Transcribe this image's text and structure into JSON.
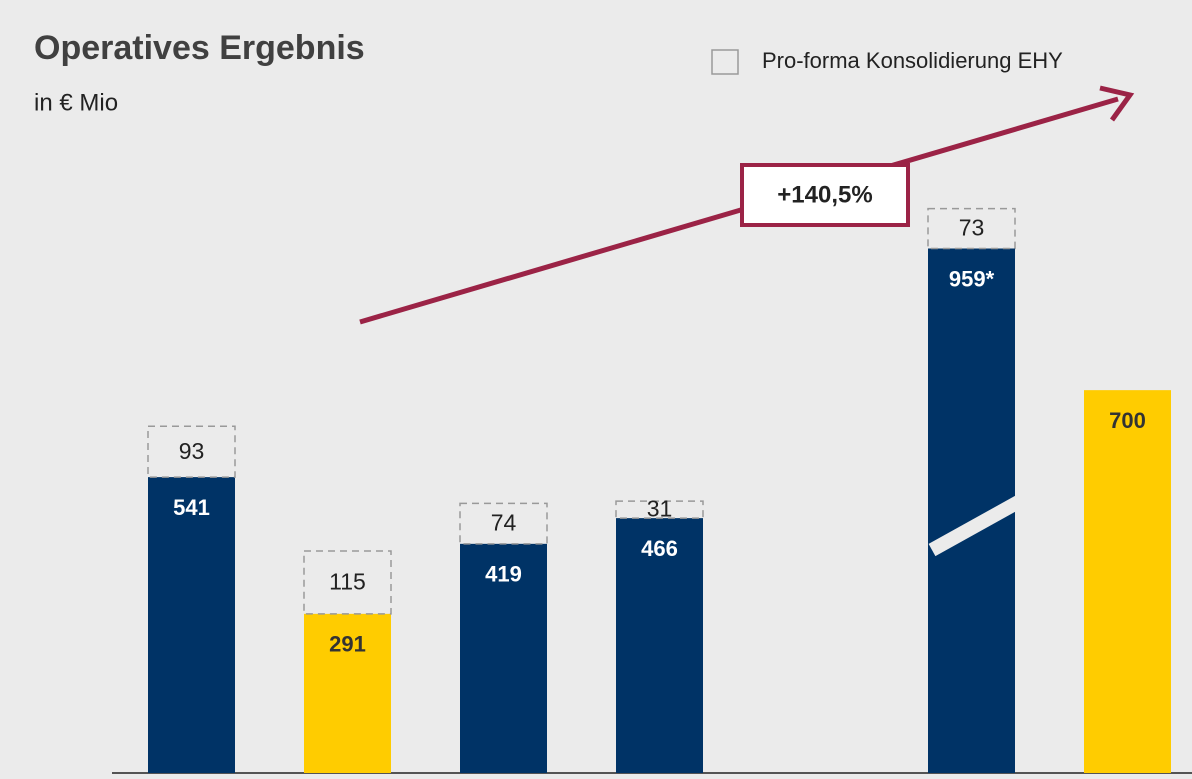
{
  "chart_data": {
    "type": "bar",
    "title": "Operatives Ergebnis",
    "subtitle": "in € Mio",
    "categories": [
      null,
      null,
      null,
      null,
      null,
      null,
      null
    ],
    "series": [
      {
        "colors": [
          "#003366",
          "#ffcc00",
          "#003366",
          "#003366",
          null,
          "#003366",
          "#ffcc00"
        ],
        "values": [
          541,
          291,
          419,
          466,
          null,
          959,
          700
        ],
        "value_labels": [
          "541",
          "291",
          "419",
          "466",
          null,
          "959*",
          "700"
        ]
      },
      {
        "name": "Pro-forma Konsolidierung EHY",
        "color": "#999999",
        "dashed": true,
        "values": [
          93,
          115,
          74,
          31,
          null,
          73,
          null
        ]
      }
    ],
    "ylim": [
      0,
      1300
    ],
    "annotation": "+140,5%",
    "annotation_color": "#9b2346"
  }
}
